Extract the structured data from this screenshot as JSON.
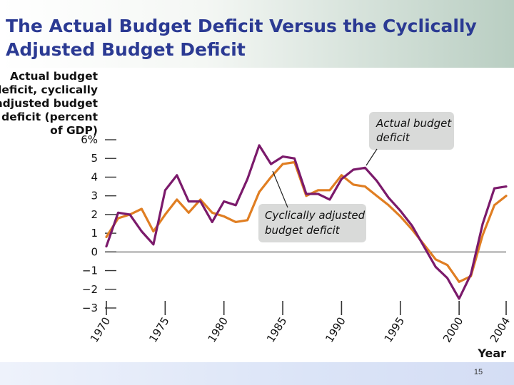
{
  "slide": {
    "title_line1": "The Actual Budget Deficit Versus the Cyclically",
    "title_line2": "Adjusted Budget Deficit",
    "page_number": "15"
  },
  "colors": {
    "title": "#2b3a93",
    "actual_series": "#7b1a6b",
    "adjusted_series": "#e07e22",
    "callout_box": "#d9dad9",
    "axis": "#333333"
  },
  "chart_data": {
    "type": "line",
    "ylabel_lines": [
      "Actual budget",
      "deficit, cyclically",
      "adjusted budget",
      "deficit (percent",
      "of GDP)"
    ],
    "xlabel": "Year",
    "ylim": [
      -3,
      6
    ],
    "xlim": [
      1970,
      2004
    ],
    "yticks": [
      {
        "value": 6,
        "label": "6%"
      },
      {
        "value": 5,
        "label": "5"
      },
      {
        "value": 4,
        "label": "4"
      },
      {
        "value": 3,
        "label": "3"
      },
      {
        "value": 2,
        "label": "2"
      },
      {
        "value": 1,
        "label": "1"
      },
      {
        "value": 0,
        "label": "0"
      },
      {
        "value": -1,
        "label": "−1"
      },
      {
        "value": -2,
        "label": "−2"
      },
      {
        "value": -3,
        "label": "−3"
      }
    ],
    "xticks": [
      {
        "value": 1970,
        "label": "1970"
      },
      {
        "value": 1975,
        "label": "1975"
      },
      {
        "value": 1980,
        "label": "1980"
      },
      {
        "value": 1985,
        "label": "1985"
      },
      {
        "value": 1990,
        "label": "1990"
      },
      {
        "value": 1995,
        "label": "1995"
      },
      {
        "value": 2000,
        "label": "2000"
      },
      {
        "value": 2004,
        "label": "2004"
      }
    ],
    "x": [
      1970,
      1971,
      1972,
      1973,
      1974,
      1975,
      1976,
      1977,
      1978,
      1979,
      1980,
      1981,
      1982,
      1983,
      1984,
      1985,
      1986,
      1987,
      1988,
      1989,
      1990,
      1991,
      1992,
      1993,
      1994,
      1995,
      1996,
      1997,
      1998,
      1999,
      2000,
      2001,
      2002,
      2003,
      2004
    ],
    "series": [
      {
        "name": "Actual budget deficit",
        "values": [
          0.3,
          2.1,
          2.0,
          1.1,
          0.4,
          3.3,
          4.1,
          2.7,
          2.7,
          1.6,
          2.7,
          2.5,
          3.9,
          5.7,
          4.7,
          5.1,
          5.0,
          3.1,
          3.1,
          2.8,
          3.9,
          4.4,
          4.5,
          3.8,
          2.9,
          2.2,
          1.4,
          0.3,
          -0.8,
          -1.4,
          -2.5,
          -1.2,
          1.5,
          3.4,
          3.5
        ]
      },
      {
        "name": "Cyclically adjusted budget deficit",
        "values": [
          0.8,
          1.8,
          2.0,
          2.3,
          1.1,
          2.0,
          2.8,
          2.1,
          2.8,
          2.1,
          1.9,
          1.6,
          1.7,
          3.2,
          4.0,
          4.7,
          4.8,
          3.0,
          3.3,
          3.3,
          4.1,
          3.6,
          3.5,
          3.0,
          2.5,
          1.9,
          1.2,
          0.4,
          -0.4,
          -0.7,
          -1.6,
          -1.3,
          0.9,
          2.5,
          3.0
        ]
      }
    ],
    "annotations": [
      {
        "id": "actual",
        "lines": [
          "Actual budget",
          "deficit"
        ]
      },
      {
        "id": "adjusted",
        "lines": [
          "Cyclically adjusted",
          "budget deficit"
        ]
      }
    ],
    "grid": false,
    "legend": "callout labels"
  }
}
